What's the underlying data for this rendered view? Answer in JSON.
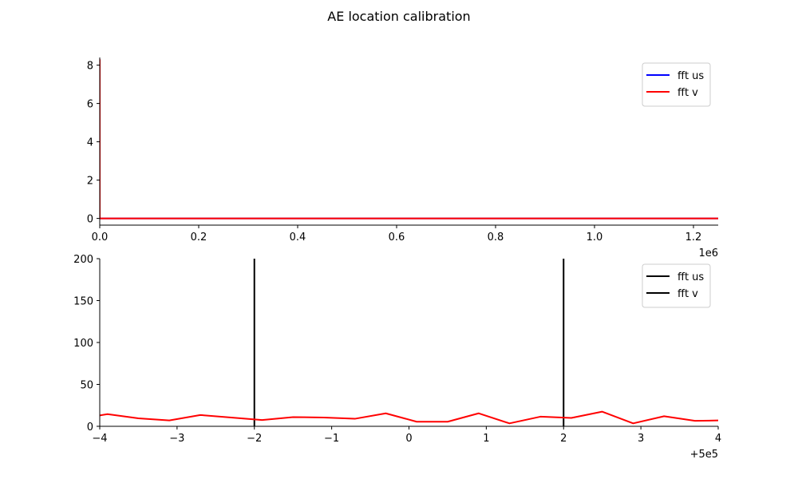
{
  "figure": {
    "title": "AE location calibration"
  },
  "chart_data": [
    {
      "type": "line",
      "title": "",
      "xlabel": "",
      "ylabel": "",
      "xlim": [
        0,
        1250000
      ],
      "ylim": [
        -0.35,
        8.4
      ],
      "x_offset_label": "1e6",
      "x_ticks": [
        0,
        200000,
        400000,
        600000,
        800000,
        1000000,
        1200000
      ],
      "x_tick_labels": [
        "0.0",
        "0.2",
        "0.4",
        "0.6",
        "0.8",
        "1.0",
        "1.2"
      ],
      "y_ticks": [
        0,
        2,
        4,
        6,
        8
      ],
      "y_tick_labels": [
        "0",
        "2",
        "4",
        "6",
        "8"
      ],
      "grid": false,
      "legend": {
        "position": "top-right",
        "entries": [
          {
            "label": "fft us",
            "color": "#0000ff"
          },
          {
            "label": "fft v",
            "color": "#ff0000"
          }
        ]
      },
      "series": [
        {
          "name": "fft us",
          "color": "#0000ff",
          "x": [
            0,
            0,
            1000,
            1250000
          ],
          "y": [
            8.3,
            0,
            0,
            0
          ]
        },
        {
          "name": "fft v",
          "color": "#ff0000",
          "x": [
            0,
            0,
            1000,
            1250000
          ],
          "y": [
            8.3,
            0,
            0,
            0
          ]
        }
      ]
    },
    {
      "type": "line",
      "title": "",
      "xlabel": "",
      "ylabel": "",
      "xlim": [
        499996,
        500004
      ],
      "ylim": [
        0,
        200
      ],
      "x_offset_label": "+5e5",
      "x_ticks": [
        499996,
        499997,
        499998,
        499999,
        500000,
        500001,
        500002,
        500003,
        500004
      ],
      "x_tick_labels": [
        "−4",
        "−3",
        "−2",
        "−1",
        "0",
        "1",
        "2",
        "3",
        "4"
      ],
      "y_ticks": [
        0,
        50,
        100,
        150,
        200
      ],
      "y_tick_labels": [
        "0",
        "50",
        "100",
        "150",
        "200"
      ],
      "grid": false,
      "legend": {
        "position": "top-right",
        "entries": [
          {
            "label": "fft us",
            "color": "#000000"
          },
          {
            "label": "fft v",
            "color": "#000000"
          }
        ]
      },
      "vertical_lines": [
        {
          "x": 499998,
          "color": "#000000"
        },
        {
          "x": 500002,
          "color": "#000000"
        }
      ],
      "series": [
        {
          "name": "",
          "color": "#ff0000",
          "x": [
            499996.0,
            499996.1,
            499996.5,
            499996.9,
            499997.3,
            499997.7,
            499998.1,
            499998.5,
            499998.9,
            499999.3,
            499999.7,
            500000.1,
            500000.5,
            500000.9,
            500001.3,
            500001.7,
            500002.1,
            500002.5,
            500002.9,
            500003.3,
            500003.7,
            500004.0
          ],
          "y": [
            13,
            14.5,
            9.5,
            7,
            13.5,
            10.5,
            7.5,
            11,
            10.5,
            9,
            15.5,
            5.5,
            5.5,
            15.5,
            3.5,
            11.5,
            10,
            17.5,
            3.5,
            12,
            6.5,
            7
          ]
        }
      ]
    }
  ]
}
